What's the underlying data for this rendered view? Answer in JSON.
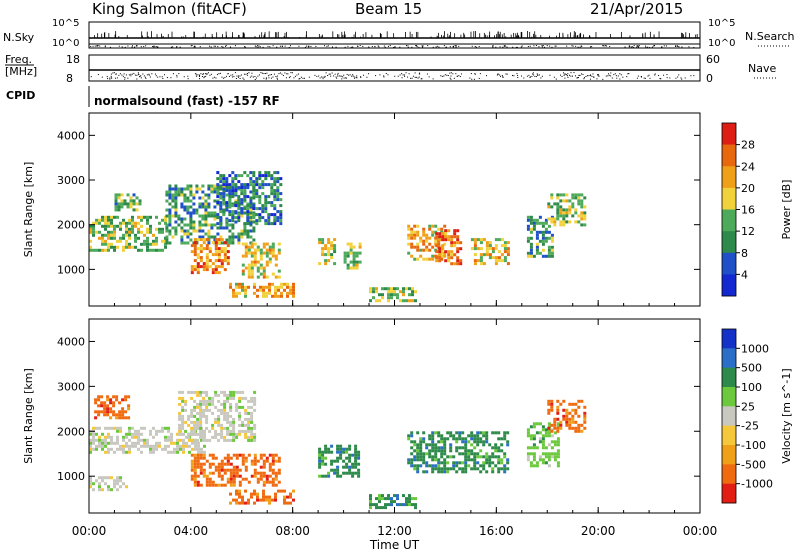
{
  "header": {
    "station": "King Salmon (fitACF)",
    "beam": "Beam 15",
    "date": "21/Apr/2015"
  },
  "panels": {
    "nsky": {
      "label": "N.Sky",
      "ticks": [
        "10^5",
        "10^0"
      ],
      "right_label": "N.Search",
      "right_ticks": [
        "10^5",
        "10^0"
      ]
    },
    "freq": {
      "label": "Freq.",
      "unit": "[MHz]",
      "ticks": [
        "18",
        "8"
      ],
      "right_label": "Nave",
      "right_ticks": [
        "60",
        "0"
      ]
    },
    "cpid": {
      "label": "CPID",
      "text": "normalsound (fast) -157 RF"
    }
  },
  "chart_data": [
    {
      "type": "heatmap",
      "name": "power",
      "ylabel": "Slant Range [km]",
      "ylim": [
        180,
        4500
      ],
      "yticks": [
        1000,
        2000,
        3000,
        4000
      ],
      "xlim_hours": [
        0,
        24
      ],
      "colorbar": {
        "label": "Power [dB]",
        "ticks": [
          "28",
          "24",
          "20",
          "16",
          "12",
          "8",
          "4"
        ],
        "range": [
          0,
          30
        ],
        "colors": [
          "#1428d2",
          "#2050c8",
          "#2e8a4a",
          "#4caa5a",
          "#f2d23c",
          "#f0a018",
          "#e8680e",
          "#dd1e14"
        ]
      },
      "echo_regions": [
        {
          "t": [
            0.0,
            3.0
          ],
          "r": [
            1400,
            2200
          ],
          "level": 14
        },
        {
          "t": [
            1.0,
            2.0
          ],
          "r": [
            2300,
            2700
          ],
          "level": 12
        },
        {
          "t": [
            3.0,
            6.5
          ],
          "r": [
            1600,
            2900
          ],
          "level": 10
        },
        {
          "t": [
            4.0,
            5.5
          ],
          "r": [
            900,
            1700
          ],
          "level": 22
        },
        {
          "t": [
            5.0,
            7.5
          ],
          "r": [
            2000,
            3200
          ],
          "level": 8
        },
        {
          "t": [
            6.0,
            7.5
          ],
          "r": [
            800,
            1600
          ],
          "level": 18
        },
        {
          "t": [
            5.5,
            8.0
          ],
          "r": [
            400,
            700
          ],
          "level": 20
        },
        {
          "t": [
            9.0,
            9.6
          ],
          "r": [
            1100,
            1700
          ],
          "level": 16
        },
        {
          "t": [
            10.0,
            10.6
          ],
          "r": [
            1000,
            1600
          ],
          "level": 16
        },
        {
          "t": [
            11.0,
            12.8
          ],
          "r": [
            300,
            600
          ],
          "level": 14
        },
        {
          "t": [
            12.5,
            14.0
          ],
          "r": [
            1200,
            2000
          ],
          "level": 20
        },
        {
          "t": [
            13.6,
            14.6
          ],
          "r": [
            1100,
            1900
          ],
          "level": 24
        },
        {
          "t": [
            15.0,
            16.5
          ],
          "r": [
            1100,
            1700
          ],
          "level": 18
        },
        {
          "t": [
            17.2,
            18.2
          ],
          "r": [
            1300,
            2200
          ],
          "level": 10
        },
        {
          "t": [
            18.0,
            19.5
          ],
          "r": [
            2000,
            2700
          ],
          "level": 14
        }
      ]
    },
    {
      "type": "heatmap",
      "name": "velocity",
      "ylabel": "Slant Range [km]",
      "ylim": [
        180,
        4500
      ],
      "yticks": [
        1000,
        2000,
        3000,
        4000
      ],
      "xlabel": "Time UT",
      "xticks": [
        "00:00",
        "04:00",
        "08:00",
        "12:00",
        "16:00",
        "20:00",
        "00:00"
      ],
      "xlim_hours": [
        0,
        24
      ],
      "colorbar": {
        "label": "Velocity [m s^-1]",
        "ticks": [
          "1000",
          "500",
          "100",
          "25",
          "-25",
          "-100",
          "-500",
          "-1000"
        ],
        "colors": [
          "#1432c8",
          "#2a6ec8",
          "#2e8a4a",
          "#6cc83c",
          "#c8c8c0",
          "#f5c83c",
          "#f0a018",
          "#f06a10",
          "#e21e14"
        ]
      },
      "echo_regions": [
        {
          "t": [
            0.0,
            4.5
          ],
          "r": [
            1500,
            2100
          ],
          "category": "ground"
        },
        {
          "t": [
            3.5,
            6.5
          ],
          "r": [
            1800,
            2900
          ],
          "category": "ground"
        },
        {
          "t": [
            0.0,
            1.5
          ],
          "r": [
            700,
            1000
          ],
          "category": "ground"
        },
        {
          "t": [
            0.2,
            1.6
          ],
          "r": [
            2300,
            2800
          ],
          "category": "-500"
        },
        {
          "t": [
            4.0,
            7.5
          ],
          "r": [
            800,
            1500
          ],
          "category": "-500"
        },
        {
          "t": [
            5.5,
            8.0
          ],
          "r": [
            400,
            700
          ],
          "category": "-500"
        },
        {
          "t": [
            9.0,
            10.6
          ],
          "r": [
            1000,
            1700
          ],
          "category": "100"
        },
        {
          "t": [
            11.0,
            12.8
          ],
          "r": [
            300,
            600
          ],
          "category": "100"
        },
        {
          "t": [
            12.5,
            16.5
          ],
          "r": [
            1100,
            2000
          ],
          "category": "100"
        },
        {
          "t": [
            17.2,
            18.4
          ],
          "r": [
            1200,
            2200
          ],
          "category": "25"
        },
        {
          "t": [
            18.0,
            19.5
          ],
          "r": [
            2000,
            2700
          ],
          "category": "-500"
        }
      ]
    }
  ]
}
